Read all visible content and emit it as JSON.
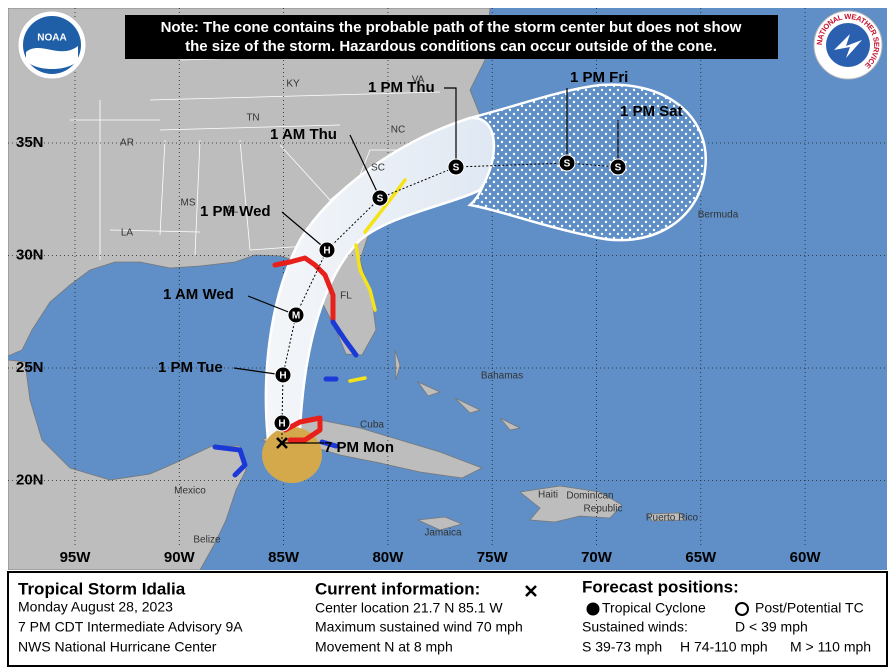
{
  "note": [
    "Note: The cone contains the probable path of the storm center but does not show",
    "the size of the storm. Hazardous conditions can occur outside of the cone."
  ],
  "logos": {
    "noaa": "NOAA",
    "nws": "NATIONAL WEATHER SERVICE"
  },
  "latitudes": [
    {
      "value": 35,
      "label": "35N"
    },
    {
      "value": 30,
      "label": "30N"
    },
    {
      "value": 25,
      "label": "25N"
    },
    {
      "value": 20,
      "label": "20N"
    }
  ],
  "longitudes": [
    {
      "value": 95,
      "label": "95W"
    },
    {
      "value": 90,
      "label": "90W"
    },
    {
      "value": 85,
      "label": "85W"
    },
    {
      "value": 80,
      "label": "80W"
    },
    {
      "value": 75,
      "label": "75W"
    },
    {
      "value": 70,
      "label": "70W"
    },
    {
      "value": 65,
      "label": "65W"
    },
    {
      "value": 60,
      "label": "60W"
    }
  ],
  "regions": [
    "KY",
    "VA",
    "TN",
    "NC",
    "AR",
    "SC",
    "MS",
    "AL",
    "LA",
    "FL",
    "Bahamas",
    "Cuba",
    "Mexico",
    "Belize",
    "Jamaica",
    "Haiti",
    "Dominican",
    "Republic",
    "Puerto Rico",
    "Bermuda"
  ],
  "forecast_points": [
    {
      "time": "7 PM Mon"
    },
    {
      "symbol": "H"
    },
    {
      "time": "1 PM Tue",
      "symbol": "H"
    },
    {
      "time": "1 AM Wed",
      "symbol": "M"
    },
    {
      "time": "1 PM Wed",
      "symbol": "H"
    },
    {
      "time": "1 AM Thu",
      "symbol": "S"
    },
    {
      "time": "1 PM Thu",
      "symbol": "S"
    },
    {
      "time": "1 PM Fri",
      "symbol": "S"
    },
    {
      "time": "1 PM Sat",
      "symbol": "S"
    }
  ],
  "storm": {
    "title": "Tropical Storm Idalia",
    "lines": [
      "Monday August 28, 2023",
      "7 PM CDT Intermediate Advisory 9A",
      "NWS National Hurricane Center"
    ]
  },
  "current": {
    "title": "Current information:",
    "lines": [
      "Center location 21.7 N 85.1 W",
      "Maximum sustained wind 70 mph",
      "Movement N at 8 mph"
    ]
  },
  "legend": {
    "title": "Forecast positions:",
    "tropical": "Tropical Cyclone",
    "post": "Post/Potential TC",
    "winds": "Sustained winds:",
    "d": "D < 39 mph",
    "s": "S 39-73 mph",
    "h": "H 74-110 mph",
    "m": "M > 110 mph"
  }
}
